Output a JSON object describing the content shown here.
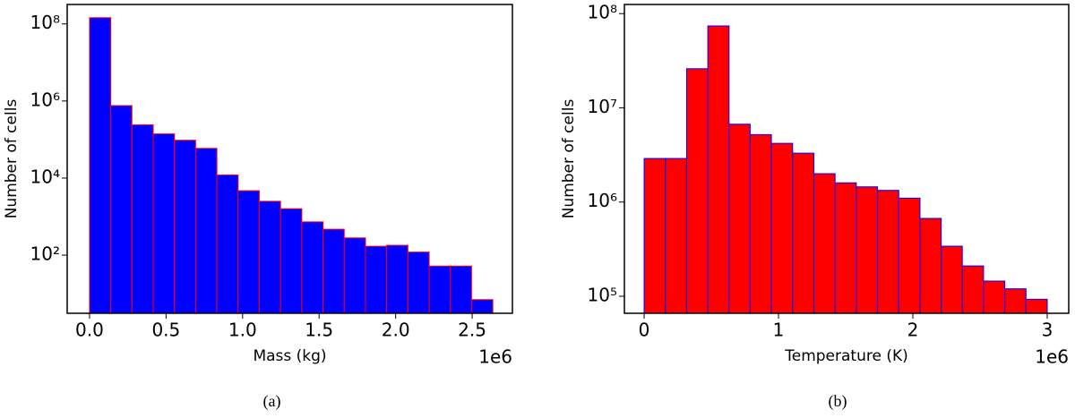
{
  "chart_data": [
    {
      "type": "histogram",
      "caption": "(a)",
      "xlabel": "Mass (kg)",
      "ylabel": "Number of cells",
      "x_offset_label": "1e6",
      "color": "#0000ff",
      "edgecolor": "#ff0000",
      "log_y": true,
      "bins": [
        0,
        0.139,
        0.277,
        0.416,
        0.555,
        0.693,
        0.832,
        0.971,
        1.109,
        1.248,
        1.387,
        1.526,
        1.664,
        1.803,
        1.942,
        2.08,
        2.219,
        2.358,
        2.496,
        2.635
      ],
      "values": [
        145000000,
        760000,
        240000,
        140000,
        96000,
        59000,
        12000,
        4700,
        2500,
        1600,
        730,
        470,
        280,
        170,
        180,
        120,
        52,
        52,
        7
      ],
      "xlim": [
        -0.146,
        2.763
      ],
      "ylim": [
        3.1,
        320000000
      ],
      "xticks": [
        {
          "value": 0,
          "label": "0.0"
        },
        0.5,
        {
          "value": 1,
          "label": "1.0"
        },
        1.5,
        {
          "value": 2,
          "label": "2.0"
        },
        2.5
      ],
      "yticks": [
        {
          "value": 100,
          "label": "10²"
        },
        {
          "value": 10000,
          "label": "10⁴"
        },
        {
          "value": 1000000,
          "label": "10⁶"
        },
        {
          "value": 100000000,
          "label": "10⁸"
        }
      ]
    },
    {
      "type": "histogram",
      "caption": "(b)",
      "xlabel": "Temperature (K)",
      "ylabel": "Number of cells",
      "x_offset_label": "1e6",
      "color": "#ff0000",
      "edgecolor": "#0000ff",
      "log_y": true,
      "bins": [
        0,
        0.158,
        0.316,
        0.474,
        0.632,
        0.789,
        0.947,
        1.105,
        1.263,
        1.421,
        1.579,
        1.737,
        1.895,
        2.053,
        2.211,
        2.368,
        2.526,
        2.684,
        2.842,
        3.0
      ],
      "values": [
        2900000,
        2900000,
        26000000,
        74000000,
        6700000,
        5200000,
        4200000,
        3300000,
        2000000,
        1600000,
        1450000,
        1330000,
        1100000,
        670000,
        340000,
        210000,
        145000,
        120000,
        93000
      ],
      "xlim": [
        -0.147,
        3.16
      ],
      "ylim": [
        66000,
        125000000
      ],
      "xticks": [
        0,
        1,
        2,
        3
      ],
      "yticks": [
        {
          "value": 100000,
          "label": "10⁵"
        },
        {
          "value": 1000000,
          "label": "10⁶"
        },
        {
          "value": 10000000,
          "label": "10⁷"
        },
        {
          "value": 100000000,
          "label": "10⁸"
        }
      ]
    }
  ]
}
